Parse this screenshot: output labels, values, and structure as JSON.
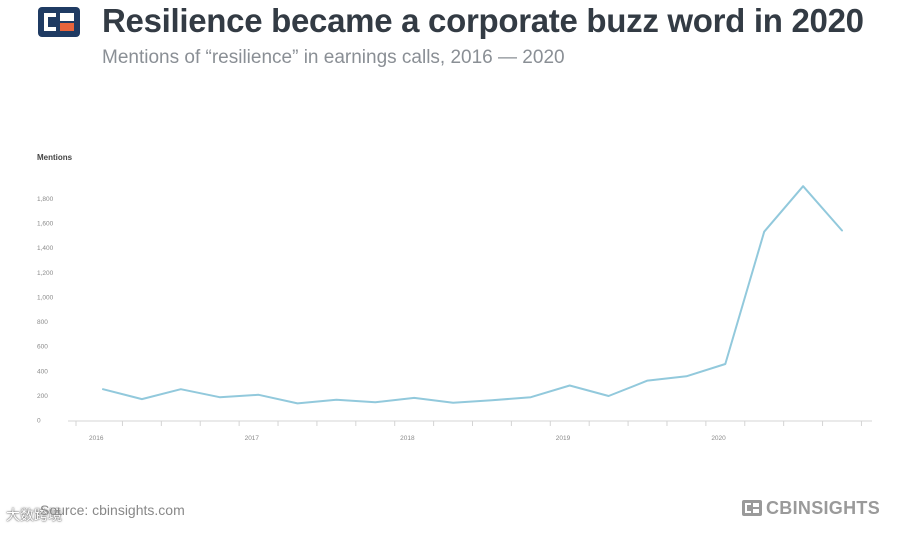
{
  "header": {
    "title": "Resilience became a corporate buzz word in 2020",
    "subtitle": "Mentions of “resilience” in earnings calls, 2016 — 2020"
  },
  "colors": {
    "line": "#92c9dc",
    "logo_dark": "#1f3b63",
    "logo_accent": "#e8643c",
    "brand_grey": "#9a9a9a"
  },
  "chart_data": {
    "type": "line",
    "ylabel": "Mentions",
    "xlabel": "",
    "ylim": [
      0,
      1800
    ],
    "yticks": [
      0,
      200,
      400,
      600,
      800,
      1000,
      1200,
      1400,
      1600,
      1800
    ],
    "ytick_labels": [
      "0",
      "200",
      "400",
      "600",
      "800",
      "1,000",
      "1,200",
      "1,400",
      "1,600",
      "1,800"
    ],
    "x_tick_labels": [
      "2016",
      "2017",
      "2018",
      "2019",
      "2020"
    ],
    "x_tick_positions": [
      0,
      4,
      8,
      12,
      16
    ],
    "grid": false,
    "series": [
      {
        "values": [
          250,
          170,
          250,
          185,
          205,
          135,
          165,
          145,
          180,
          140,
          160,
          185,
          280,
          195,
          320,
          355,
          455,
          1530,
          1900,
          1540
        ]
      }
    ]
  },
  "footer": {
    "source": "Source: cbinsights.com",
    "watermark": "大数跨境",
    "brand": "CBINSIGHTS"
  }
}
